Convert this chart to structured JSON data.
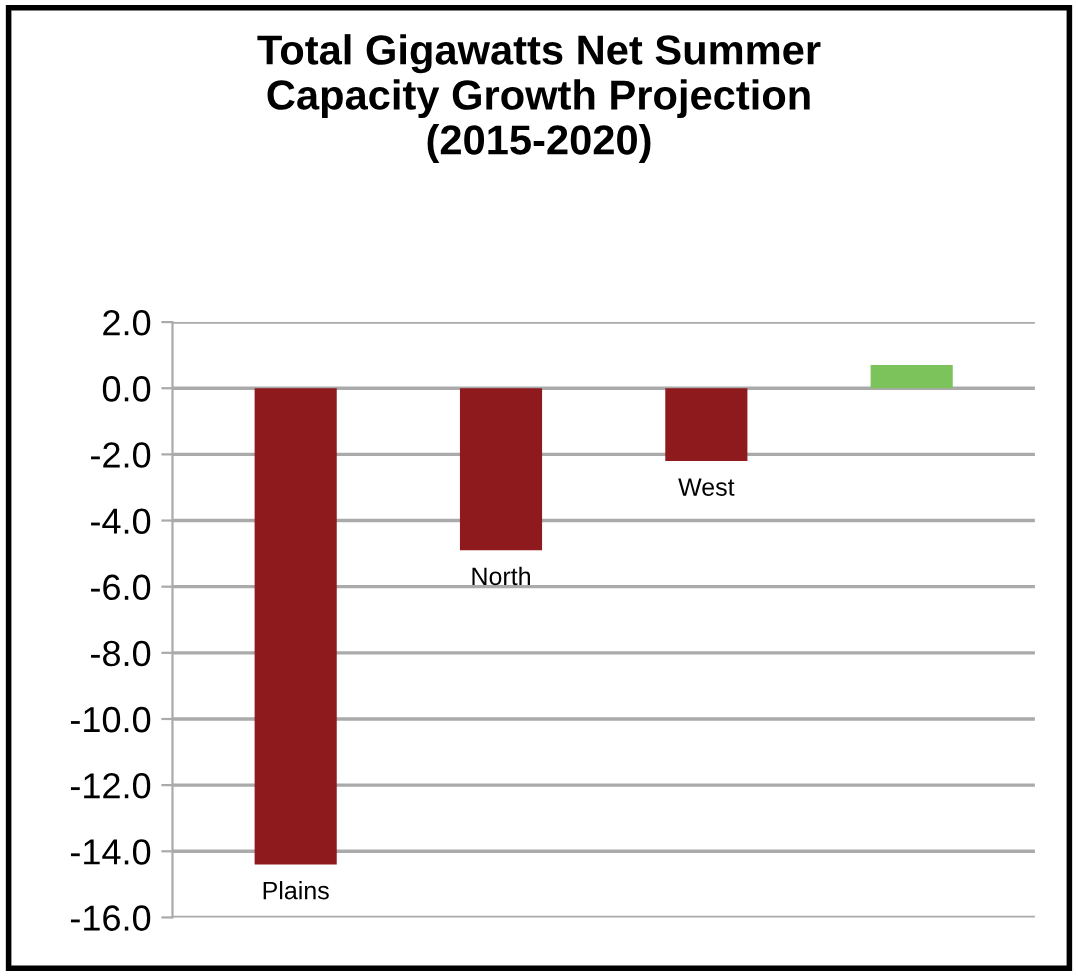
{
  "chart_data": {
    "type": "bar",
    "title": "Total Gigawatts Net Summer\nCapacity Growth Projection\n(2015-2020)",
    "categories": [
      "Plains",
      "North",
      "West",
      null
    ],
    "values": [
      -14.4,
      -4.9,
      -2.2,
      0.7
    ],
    "colors": [
      "#8e1a1e",
      "#8e1a1e",
      "#8e1a1e",
      "#7dc35b"
    ],
    "ylim": [
      -16,
      2
    ],
    "yticks": [
      {
        "value": 2,
        "label": "2.0"
      },
      {
        "value": 0,
        "label": "0.0"
      },
      {
        "value": -2,
        "label": "-2.0"
      },
      {
        "value": -4,
        "label": "-4.0"
      },
      {
        "value": -6,
        "label": "-6.0"
      },
      {
        "value": -8,
        "label": "-8.0"
      },
      {
        "value": -10,
        "label": "-10.0"
      },
      {
        "value": -12,
        "label": "-12.0"
      },
      {
        "value": -14,
        "label": "-14.0"
      },
      {
        "value": -16,
        "label": "-16.0"
      }
    ],
    "grid": "y"
  }
}
